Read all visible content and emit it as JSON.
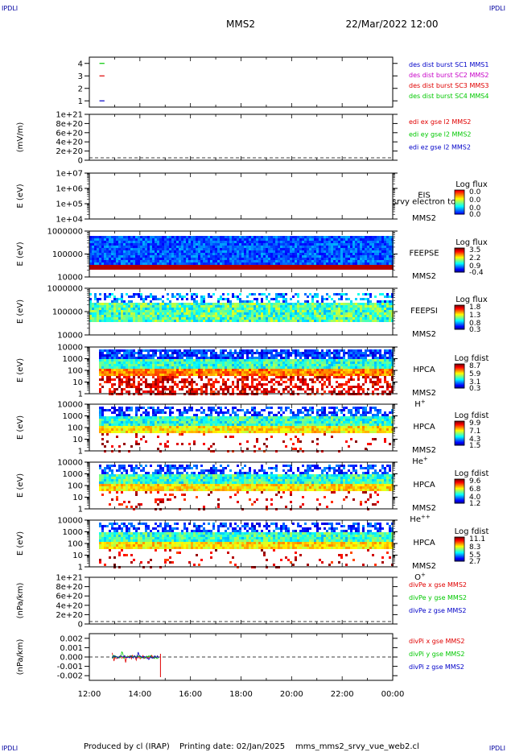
{
  "header": {
    "corner_tl": "IPDLI",
    "corner_tr": "IPDLI",
    "corner_bl": "IPDLI",
    "corner_br": "IPDLI",
    "spacecraft": "MMS2",
    "datetime": "22/Mar/2022 12:00"
  },
  "footer": {
    "produced": "Produced by cl (IRAP)",
    "printing": "Printing date: 02/Jan/2025",
    "file": "mms_mms2_srvy_vue_web2.cl"
  },
  "colors": {
    "mms1": "#0000c8",
    "mms2": "#c800c8",
    "mms3": "#e00000",
    "mms4": "#00c800",
    "x": "#e00000",
    "y": "#00c800",
    "z": "#0000c8"
  },
  "chart_data": [
    {
      "type": "line",
      "panel": "burst",
      "yticks": [
        "4",
        "3",
        "2",
        "1"
      ],
      "ylim": [
        0.5,
        4.5
      ],
      "xlim_hours": [
        12,
        24
      ],
      "legend": [
        {
          "label": "des dist burst SC1 MMS1",
          "color": "#0000c8"
        },
        {
          "label": "des dist burst SC2 MMS2",
          "color": "#c800c8"
        },
        {
          "label": "des dist burst SC3 MMS3",
          "color": "#e00000"
        },
        {
          "label": "des dist burst SC4 MMS4",
          "color": "#00c800"
        }
      ],
      "series": [
        {
          "name": "des dist burst SC1 MMS1",
          "y": 1,
          "x": [
            12.4,
            12.6
          ]
        },
        {
          "name": "des dist burst SC3 MMS3",
          "y": 3,
          "x": [
            12.4,
            12.6
          ]
        },
        {
          "name": "des dist burst SC4 MMS4",
          "y": 4,
          "x": [
            12.4,
            12.6
          ]
        }
      ]
    },
    {
      "type": "line",
      "panel": "edi",
      "ylabel": "(mV/m)",
      "yticks": [
        "1e+21",
        "8e+20",
        "6e+20",
        "4e+20",
        "2e+20",
        "0"
      ],
      "legend": [
        {
          "label": "edi ex gse l2 MMS2",
          "color": "#e00000"
        },
        {
          "label": "edi ey gse l2 MMS2",
          "color": "#00c800"
        },
        {
          "label": "edi ez gse l2 MMS2",
          "color": "#0000c8"
        }
      ]
    },
    {
      "type": "heatmap",
      "panel": "eis",
      "ylabel": "E (eV)",
      "yticks": [
        "1e+07",
        "1e+06",
        "1e+05",
        "1e+04"
      ],
      "instrument": "EIS",
      "extra_label": "srvy electron to",
      "spacecraft": "MMS2",
      "cbar_title": "Log flux",
      "cbar_ticks": [
        "0.0",
        "0.0",
        "0.0",
        "0.0"
      ]
    },
    {
      "type": "heatmap",
      "panel": "feeps_e",
      "ylabel": "E (eV)",
      "yticks": [
        "1000000",
        "100000",
        "10000"
      ],
      "instrument": "FEEPSE",
      "spacecraft": "MMS2",
      "cbar_title": "Log flux",
      "cbar_ticks": [
        "3.5",
        "2.2",
        "0.9",
        "-0.4"
      ]
    },
    {
      "type": "heatmap",
      "panel": "feeps_i",
      "ylabel": "E (eV)",
      "yticks": [
        "1000000",
        "100000",
        "10000"
      ],
      "instrument": "FEEPSI",
      "spacecraft": "MMS2",
      "cbar_title": "Log flux",
      "cbar_ticks": [
        "1.8",
        "1.3",
        "0.8",
        "0.3"
      ]
    },
    {
      "type": "heatmap",
      "panel": "hpca_h",
      "ylabel": "E (eV)",
      "yticks": [
        "10000",
        "1000",
        "100",
        "10",
        "1"
      ],
      "instrument": "HPCA",
      "spacecraft": "MMS2",
      "species": "H",
      "charge": "+",
      "cbar_title": "Log fdist",
      "cbar_ticks": [
        "8.7",
        "5.9",
        "3.1",
        "0.3"
      ]
    },
    {
      "type": "heatmap",
      "panel": "hpca_he",
      "ylabel": "E (eV)",
      "yticks": [
        "10000",
        "1000",
        "100",
        "10",
        "1"
      ],
      "instrument": "HPCA",
      "spacecraft": "MMS2",
      "species": "He",
      "charge": "+",
      "cbar_title": "Log fdist",
      "cbar_ticks": [
        "9.9",
        "7.1",
        "4.3",
        "1.5"
      ]
    },
    {
      "type": "heatmap",
      "panel": "hpca_he2",
      "ylabel": "E (eV)",
      "yticks": [
        "10000",
        "1000",
        "100",
        "10",
        "1"
      ],
      "instrument": "HPCA",
      "spacecraft": "MMS2",
      "species": "He",
      "charge": "++",
      "cbar_title": "Log fdist",
      "cbar_ticks": [
        "9.6",
        "6.8",
        "4.0",
        "1.2"
      ]
    },
    {
      "type": "heatmap",
      "panel": "hpca_o",
      "ylabel": "E (eV)",
      "yticks": [
        "10000",
        "1000",
        "100",
        "10",
        "1"
      ],
      "instrument": "HPCA",
      "spacecraft": "MMS2",
      "species": "O",
      "charge": "+",
      "cbar_title": "Log fdist",
      "cbar_ticks": [
        "11.1",
        "8.3",
        "5.5",
        "2.7"
      ]
    },
    {
      "type": "line",
      "panel": "divpe",
      "ylabel": "(nPa/km)",
      "yticks": [
        "1e+21",
        "8e+20",
        "6e+20",
        "4e+20",
        "2e+20",
        "0"
      ],
      "legend": [
        {
          "label": "divPe x gse MMS2",
          "color": "#e00000"
        },
        {
          "label": "divPe y gse MMS2",
          "color": "#00c800"
        },
        {
          "label": "divPe z gse MMS2",
          "color": "#0000c8"
        }
      ]
    },
    {
      "type": "line",
      "panel": "divpi",
      "ylabel": "(nPa/km)",
      "yticks": [
        "0.002",
        "0.001",
        "0.000",
        "-0.001",
        "-0.002"
      ],
      "ylim": [
        -0.0025,
        0.0025
      ],
      "xticks": [
        "12:00",
        "14:00",
        "16:00",
        "18:00",
        "20:00",
        "22:00",
        "00:00"
      ],
      "xlim_hours": [
        12,
        24
      ],
      "legend": [
        {
          "label": "divPi x gse MMS2",
          "color": "#e00000"
        },
        {
          "label": "divPi y gse MMS2",
          "color": "#00c800"
        },
        {
          "label": "divPi z gse MMS2",
          "color": "#0000c8"
        }
      ],
      "data_span_hours": [
        12.9,
        14.75
      ]
    }
  ]
}
